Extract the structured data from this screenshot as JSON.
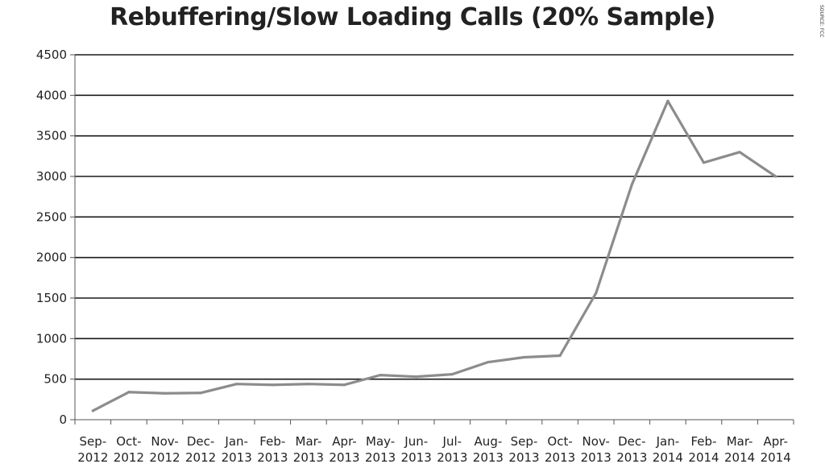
{
  "source_note": "SOURCE: FCC",
  "colors": {
    "line": "#8c8c8c",
    "grid": "#1a1a1a",
    "axis": "#555555",
    "text": "#222222"
  },
  "chart_data": {
    "type": "line",
    "title": "Rebuffering/Slow Loading Calls (20% Sample)",
    "xlabel": "",
    "ylabel": "",
    "categories": [
      "Sep-2012",
      "Oct-2012",
      "Nov-2012",
      "Dec-2012",
      "Jan-2013",
      "Feb-2013",
      "Mar-2013",
      "Apr-2013",
      "May-2013",
      "Jun-2013",
      "Jul-2013",
      "Aug-2013",
      "Sep-2013",
      "Oct-2013",
      "Nov-2013",
      "Dec-2013",
      "Jan-2014",
      "Feb-2014",
      "Mar-2014",
      "Apr-2014"
    ],
    "category_lines": [
      [
        "Sep-",
        "2012"
      ],
      [
        "Oct-",
        "2012"
      ],
      [
        "Nov-",
        "2012"
      ],
      [
        "Dec-",
        "2012"
      ],
      [
        "Jan-",
        "2013"
      ],
      [
        "Feb-",
        "2013"
      ],
      [
        "Mar-",
        "2013"
      ],
      [
        "Apr-",
        "2013"
      ],
      [
        "May-",
        "2013"
      ],
      [
        "Jun-",
        "2013"
      ],
      [
        "Jul-",
        "2013"
      ],
      [
        "Aug-",
        "2013"
      ],
      [
        "Sep-",
        "2013"
      ],
      [
        "Oct-",
        "2013"
      ],
      [
        "Nov-",
        "2013"
      ],
      [
        "Dec-",
        "2013"
      ],
      [
        "Jan-",
        "2014"
      ],
      [
        "Feb-",
        "2014"
      ],
      [
        "Mar-",
        "2014"
      ],
      [
        "Apr-",
        "2014"
      ]
    ],
    "series": [
      {
        "values": [
          110,
          340,
          325,
          330,
          440,
          430,
          440,
          430,
          550,
          530,
          560,
          710,
          770,
          790,
          1560,
          2900,
          3930,
          3170,
          3300,
          3000
        ]
      }
    ],
    "ylim": [
      0,
      4500
    ],
    "yticks": [
      0,
      500,
      1000,
      1500,
      2000,
      2500,
      3000,
      3500,
      4000,
      4500
    ],
    "grid": true,
    "legend": "none"
  }
}
